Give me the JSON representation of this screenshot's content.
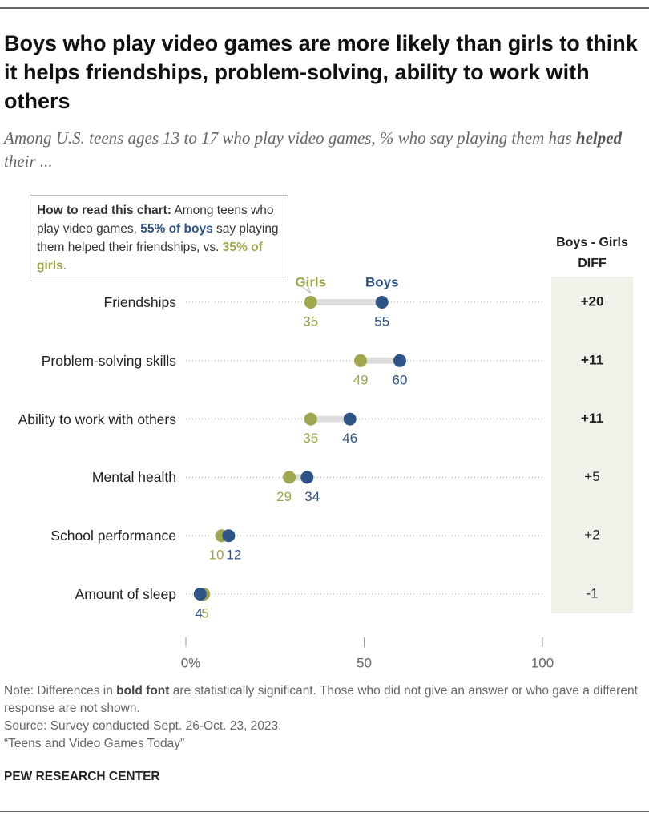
{
  "header": {
    "title": "Boys who play video games are more likely than girls to think it helps friendships, problem-solving, ability to work with others",
    "subtitle": [
      "Among U.S. teens ages 13 to 17 who play video games, % who say playing them has ",
      "helped",
      " their ..."
    ]
  },
  "chart_data": {
    "type": "dumbbell",
    "categories": [
      "Friendships",
      "Problem-solving skills",
      "Ability to work with others",
      "Mental health",
      "School performance",
      "Amount of sleep"
    ],
    "series": [
      {
        "name": "Girls",
        "color": "#a0a64d",
        "values": [
          35,
          49,
          35,
          29,
          10,
          5
        ]
      },
      {
        "name": "Boys",
        "color": "#2e5487",
        "values": [
          55,
          60,
          46,
          34,
          12,
          4
        ]
      }
    ],
    "xlim": [
      0,
      100
    ],
    "xticks": [
      {
        "value": 0,
        "label": "0%"
      },
      50,
      100
    ],
    "diff": {
      "title": "Boys - Girls DIFF",
      "values": [
        20,
        11,
        11,
        5,
        2,
        -1
      ],
      "value_labels": [
        "+20",
        "+11",
        "+11",
        "+5",
        "+2",
        "-1"
      ],
      "bold": [
        true,
        true,
        true,
        false,
        false,
        false
      ]
    },
    "annotation": [
      "How to read this chart:",
      " Among teens who play video games, ",
      "55% of boys",
      " say playing them helped their friendships, vs. ",
      "35% of girls",
      "."
    ]
  },
  "footer": {
    "note": [
      "Note: Differences in ",
      "bold font",
      " are statistically significant. Those who did not give an answer or who gave a different response are not shown."
    ],
    "source": "Source: Survey conducted Sept. 26-Oct. 23, 2023.",
    "report": "“Teens and Video Games Today”",
    "org": "PEW RESEARCH CENTER"
  }
}
